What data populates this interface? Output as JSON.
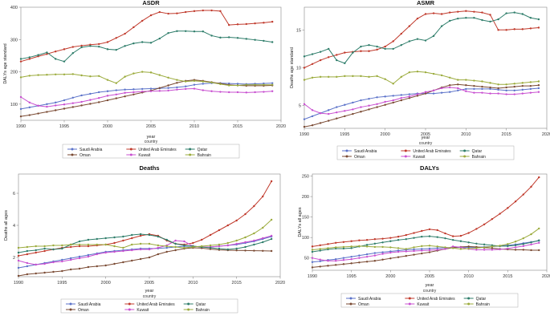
{
  "chart_data": [
    {
      "type": "line",
      "title": "ASDR",
      "xlabel": "year",
      "ylabel": "DALYs age standard",
      "xlim": [
        1990,
        2020
      ],
      "ylim": [
        50,
        400
      ],
      "xticks": [
        1990,
        1995,
        2000,
        2005,
        2010,
        2015,
        2020
      ],
      "yticks": [
        100,
        200,
        300,
        400
      ],
      "ytick_labels": [
        "100",
        "200",
        "300",
        "400"
      ],
      "x": [
        1990,
        1991,
        1992,
        1993,
        1994,
        1995,
        1996,
        1997,
        1998,
        1999,
        2000,
        2001,
        2002,
        2003,
        2004,
        2005,
        2006,
        2007,
        2008,
        2009,
        2010,
        2011,
        2012,
        2013,
        2014,
        2015,
        2016,
        2017,
        2018,
        2019
      ],
      "series": [
        {
          "name": "Saudi Arabia",
          "values": [
            85,
            90,
            95,
            100,
            105,
            112,
            120,
            127,
            132,
            137,
            140,
            143,
            145,
            146,
            147,
            148,
            149,
            150,
            152,
            155,
            160,
            163,
            165,
            165,
            164,
            163,
            162,
            163,
            164,
            165
          ]
        },
        {
          "name": "Oman",
          "values": [
            62,
            66,
            71,
            76,
            81,
            86,
            91,
            96,
            101,
            106,
            112,
            118,
            124,
            130,
            136,
            142,
            150,
            158,
            166,
            172,
            175,
            172,
            168,
            164,
            160,
            158,
            157,
            157,
            157,
            158
          ]
        },
        {
          "name": "United Arab Emirates",
          "values": [
            232,
            240,
            248,
            255,
            263,
            270,
            277,
            281,
            284,
            286,
            292,
            305,
            318,
            338,
            358,
            375,
            385,
            380,
            381,
            385,
            388,
            390,
            390,
            388,
            345,
            347,
            348,
            350,
            352,
            355
          ]
        },
        {
          "name": "Kuwait",
          "values": [
            122,
            105,
            95,
            92,
            96,
            99,
            103,
            107,
            113,
            119,
            126,
            130,
            135,
            137,
            139,
            140,
            141,
            142,
            145,
            147,
            148,
            143,
            140,
            138,
            137,
            137,
            136,
            137,
            138,
            140
          ]
        },
        {
          "name": "Qatar",
          "values": [
            240,
            245,
            252,
            260,
            240,
            232,
            258,
            276,
            280,
            278,
            270,
            268,
            280,
            288,
            292,
            290,
            303,
            320,
            326,
            326,
            325,
            325,
            312,
            306,
            307,
            305,
            302,
            299,
            296,
            292
          ]
        },
        {
          "name": "Bahrain",
          "values": [
            183,
            188,
            190,
            191,
            192,
            192,
            193,
            189,
            186,
            187,
            175,
            165,
            185,
            195,
            200,
            198,
            190,
            182,
            175,
            170,
            172,
            170,
            167,
            162,
            158,
            158,
            160,
            160,
            160,
            160
          ]
        }
      ]
    },
    {
      "type": "line",
      "title": "ASMR",
      "xlabel": "year",
      "ylabel": "Deaths age standard",
      "xlim": [
        1990,
        2020
      ],
      "ylim": [
        2,
        18
      ],
      "xticks": [
        1990,
        1995,
        2000,
        2005,
        2010,
        2015,
        2020
      ],
      "yticks": [
        5,
        10,
        15
      ],
      "ytick_labels": [
        "5",
        "10",
        "15"
      ],
      "x": [
        1990,
        1991,
        1992,
        1993,
        1994,
        1995,
        1996,
        1997,
        1998,
        1999,
        2000,
        2001,
        2002,
        2003,
        2004,
        2005,
        2006,
        2007,
        2008,
        2009,
        2010,
        2011,
        2012,
        2013,
        2014,
        2015,
        2016,
        2017,
        2018,
        2019
      ],
      "series": [
        {
          "name": "Saudi Arabia",
          "values": [
            3.2,
            3.6,
            4.0,
            4.4,
            4.8,
            5.1,
            5.4,
            5.7,
            5.9,
            6.1,
            6.2,
            6.3,
            6.4,
            6.5,
            6.6,
            6.6,
            6.6,
            6.7,
            6.8,
            7.0,
            7.2,
            7.2,
            7.2,
            7.2,
            7.1,
            7.0,
            7.0,
            7.1,
            7.2,
            7.3
          ]
        },
        {
          "name": "Oman",
          "values": [
            2.2,
            2.4,
            2.7,
            3.0,
            3.3,
            3.6,
            3.9,
            4.2,
            4.5,
            4.8,
            5.1,
            5.4,
            5.7,
            6.0,
            6.3,
            6.6,
            7.0,
            7.4,
            7.7,
            7.8,
            7.7,
            7.6,
            7.5,
            7.4,
            7.3,
            7.4,
            7.5,
            7.6,
            7.6,
            7.7
          ]
        },
        {
          "name": "United Arab Emirates",
          "values": [
            10.0,
            10.5,
            11.0,
            11.4,
            11.7,
            12.0,
            12.1,
            12.2,
            12.2,
            12.4,
            12.8,
            13.5,
            14.5,
            15.5,
            16.5,
            17.1,
            17.2,
            17.1,
            17.3,
            17.4,
            17.5,
            17.4,
            17.3,
            17.0,
            15.0,
            15.0,
            15.1,
            15.1,
            15.2,
            15.3
          ]
        },
        {
          "name": "Kuwait",
          "values": [
            5.2,
            4.4,
            4.0,
            3.9,
            4.1,
            4.3,
            4.5,
            4.8,
            5.0,
            5.2,
            5.5,
            5.7,
            6.0,
            6.2,
            6.5,
            6.8,
            7.0,
            7.3,
            7.4,
            7.3,
            6.9,
            6.7,
            6.7,
            6.6,
            6.6,
            6.5,
            6.5,
            6.6,
            6.7,
            6.8
          ]
        },
        {
          "name": "Qatar",
          "values": [
            11.5,
            11.8,
            12.1,
            12.5,
            11.0,
            10.6,
            12.0,
            12.8,
            13.0,
            12.8,
            12.5,
            12.5,
            13.0,
            13.5,
            13.8,
            13.6,
            14.2,
            15.5,
            16.2,
            16.5,
            16.6,
            16.6,
            16.3,
            16.1,
            16.4,
            17.2,
            17.3,
            17.1,
            16.6,
            16.4
          ]
        },
        {
          "name": "Bahrain",
          "values": [
            8.4,
            8.7,
            8.8,
            8.8,
            8.8,
            8.9,
            8.9,
            8.9,
            8.8,
            8.9,
            8.5,
            7.9,
            8.8,
            9.4,
            9.5,
            9.4,
            9.2,
            9.0,
            8.7,
            8.4,
            8.4,
            8.3,
            8.2,
            8.0,
            7.8,
            7.8,
            7.9,
            8.0,
            8.1,
            8.2
          ]
        }
      ]
    },
    {
      "type": "line",
      "title": "Deaths",
      "xlabel": "year",
      "ylabel": "Deaths all ages",
      "xlim": [
        1990,
        2020
      ],
      "ylim": [
        800,
        7200
      ],
      "xticks": [
        1990,
        1995,
        2000,
        2005,
        2010,
        2015,
        2020
      ],
      "yticks": [
        2000,
        4000,
        6000
      ],
      "ytick_labels": [
        "2",
        "4",
        "6"
      ],
      "x": [
        1990,
        1991,
        1992,
        1993,
        1994,
        1995,
        1996,
        1997,
        1998,
        1999,
        2000,
        2001,
        2002,
        2003,
        2004,
        2005,
        2006,
        2007,
        2008,
        2009,
        2010,
        2011,
        2012,
        2013,
        2014,
        2015,
        2016,
        2017,
        2018,
        2019
      ],
      "series": [
        {
          "name": "Saudi Arabia",
          "values": [
            1350,
            1450,
            1550,
            1650,
            1750,
            1850,
            1950,
            2050,
            2150,
            2250,
            2350,
            2400,
            2450,
            2500,
            2550,
            2550,
            2560,
            2600,
            2650,
            2700,
            2700,
            2650,
            2650,
            2700,
            2750,
            2800,
            2900,
            3000,
            3150,
            3300
          ]
        },
        {
          "name": "Oman",
          "values": [
            850,
            950,
            1000,
            1050,
            1100,
            1150,
            1250,
            1300,
            1400,
            1450,
            1500,
            1600,
            1700,
            1800,
            1900,
            2000,
            2200,
            2350,
            2450,
            2550,
            2600,
            2580,
            2520,
            2470,
            2450,
            2440,
            2430,
            2420,
            2410,
            2400
          ]
        },
        {
          "name": "United Arab Emirates",
          "values": [
            2100,
            2200,
            2300,
            2400,
            2500,
            2600,
            2650,
            2700,
            2700,
            2750,
            2800,
            2900,
            3050,
            3200,
            3350,
            3450,
            3350,
            3050,
            2850,
            2800,
            2900,
            3100,
            3400,
            3700,
            4000,
            4300,
            4700,
            5200,
            5800,
            6750
          ]
        },
        {
          "name": "Kuwait",
          "values": [
            1800,
            1650,
            1550,
            1600,
            1700,
            1750,
            1850,
            1950,
            2050,
            2200,
            2300,
            2350,
            2400,
            2450,
            2500,
            2500,
            2600,
            2750,
            3050,
            3000,
            2700,
            2650,
            2650,
            2700,
            2750,
            2850,
            2950,
            3050,
            3200,
            3350
          ]
        },
        {
          "name": "Qatar",
          "values": [
            2300,
            2400,
            2450,
            2550,
            2500,
            2550,
            2800,
            3000,
            3100,
            3150,
            3200,
            3250,
            3300,
            3400,
            3450,
            3400,
            3300,
            3100,
            2850,
            2750,
            2700,
            2650,
            2600,
            2550,
            2500,
            2550,
            2650,
            2800,
            2950,
            3150
          ]
        },
        {
          "name": "Bahrain",
          "values": [
            2600,
            2650,
            2700,
            2700,
            2750,
            2750,
            2800,
            2800,
            2800,
            2800,
            2800,
            2700,
            2600,
            2800,
            2850,
            2850,
            2750,
            2700,
            2650,
            2600,
            2650,
            2700,
            2750,
            2800,
            2900,
            3050,
            3250,
            3500,
            3850,
            4350
          ]
        }
      ]
    },
    {
      "type": "line",
      "title": "DALYs",
      "xlabel": "year",
      "ylabel": "DALYs all ages",
      "xlim": [
        1990,
        2020
      ],
      "ylim": [
        20,
        255
      ],
      "xticks": [
        1990,
        1995,
        2000,
        2005,
        2010,
        2015,
        2020
      ],
      "yticks": [
        50,
        100,
        150,
        200,
        250
      ],
      "ytick_labels": [
        "50",
        "100",
        "150",
        "200",
        "250"
      ],
      "x": [
        1990,
        1991,
        1992,
        1993,
        1994,
        1995,
        1996,
        1997,
        1998,
        1999,
        2000,
        2001,
        2002,
        2003,
        2004,
        2005,
        2006,
        2007,
        2008,
        2009,
        2010,
        2011,
        2012,
        2013,
        2014,
        2015,
        2016,
        2017,
        2018,
        2019
      ],
      "series": [
        {
          "name": "Saudi Arabia",
          "values": [
            40,
            42,
            45,
            47,
            50,
            53,
            56,
            59,
            62,
            64,
            66,
            68,
            70,
            71,
            72,
            73,
            74,
            75,
            75,
            76,
            76,
            76,
            77,
            78,
            79,
            81,
            83,
            86,
            89,
            92
          ]
        },
        {
          "name": "Oman",
          "values": [
            27,
            29,
            31,
            33,
            35,
            37,
            39,
            41,
            43,
            46,
            49,
            52,
            55,
            58,
            61,
            64,
            68,
            72,
            75,
            77,
            78,
            77,
            75,
            74,
            72,
            71,
            70,
            70,
            69,
            69
          ]
        },
        {
          "name": "United Arab Emirates",
          "values": [
            78,
            81,
            84,
            87,
            89,
            91,
            93,
            94,
            96,
            97,
            99,
            102,
            106,
            111,
            116,
            120,
            118,
            110,
            103,
            104,
            111,
            121,
            132,
            145,
            158,
            172,
            188,
            205,
            224,
            247
          ]
        },
        {
          "name": "Kuwait",
          "values": [
            50,
            46,
            43,
            43,
            45,
            47,
            50,
            53,
            56,
            60,
            63,
            65,
            66,
            67,
            68,
            69,
            70,
            72,
            78,
            76,
            72,
            70,
            70,
            70,
            71,
            73,
            76,
            79,
            83,
            87
          ]
        },
        {
          "name": "Qatar",
          "values": [
            65,
            68,
            71,
            73,
            73,
            74,
            78,
            82,
            85,
            88,
            91,
            94,
            96,
            99,
            102,
            103,
            101,
            98,
            94,
            91,
            88,
            85,
            83,
            81,
            79,
            79,
            81,
            84,
            88,
            93
          ]
        },
        {
          "name": "Bahrain",
          "values": [
            70,
            72,
            74,
            76,
            77,
            78,
            79,
            78,
            77,
            77,
            76,
            74,
            72,
            76,
            79,
            80,
            78,
            76,
            74,
            72,
            73,
            74,
            76,
            78,
            80,
            84,
            90,
            98,
            108,
            122
          ]
        }
      ]
    }
  ],
  "legend": {
    "title": "country",
    "entries": [
      "Saudi Arabia",
      "United Arab Emirates",
      "Qatar",
      "Oman",
      "Kuwait",
      "Bahrain"
    ]
  },
  "colors": {
    "Saudi Arabia": "#5b72c9",
    "Oman": "#7a4a33",
    "United Arab Emirates": "#c0392b",
    "Kuwait": "#c84fd0",
    "Qatar": "#2e7d6a",
    "Bahrain": "#9bab3c"
  }
}
